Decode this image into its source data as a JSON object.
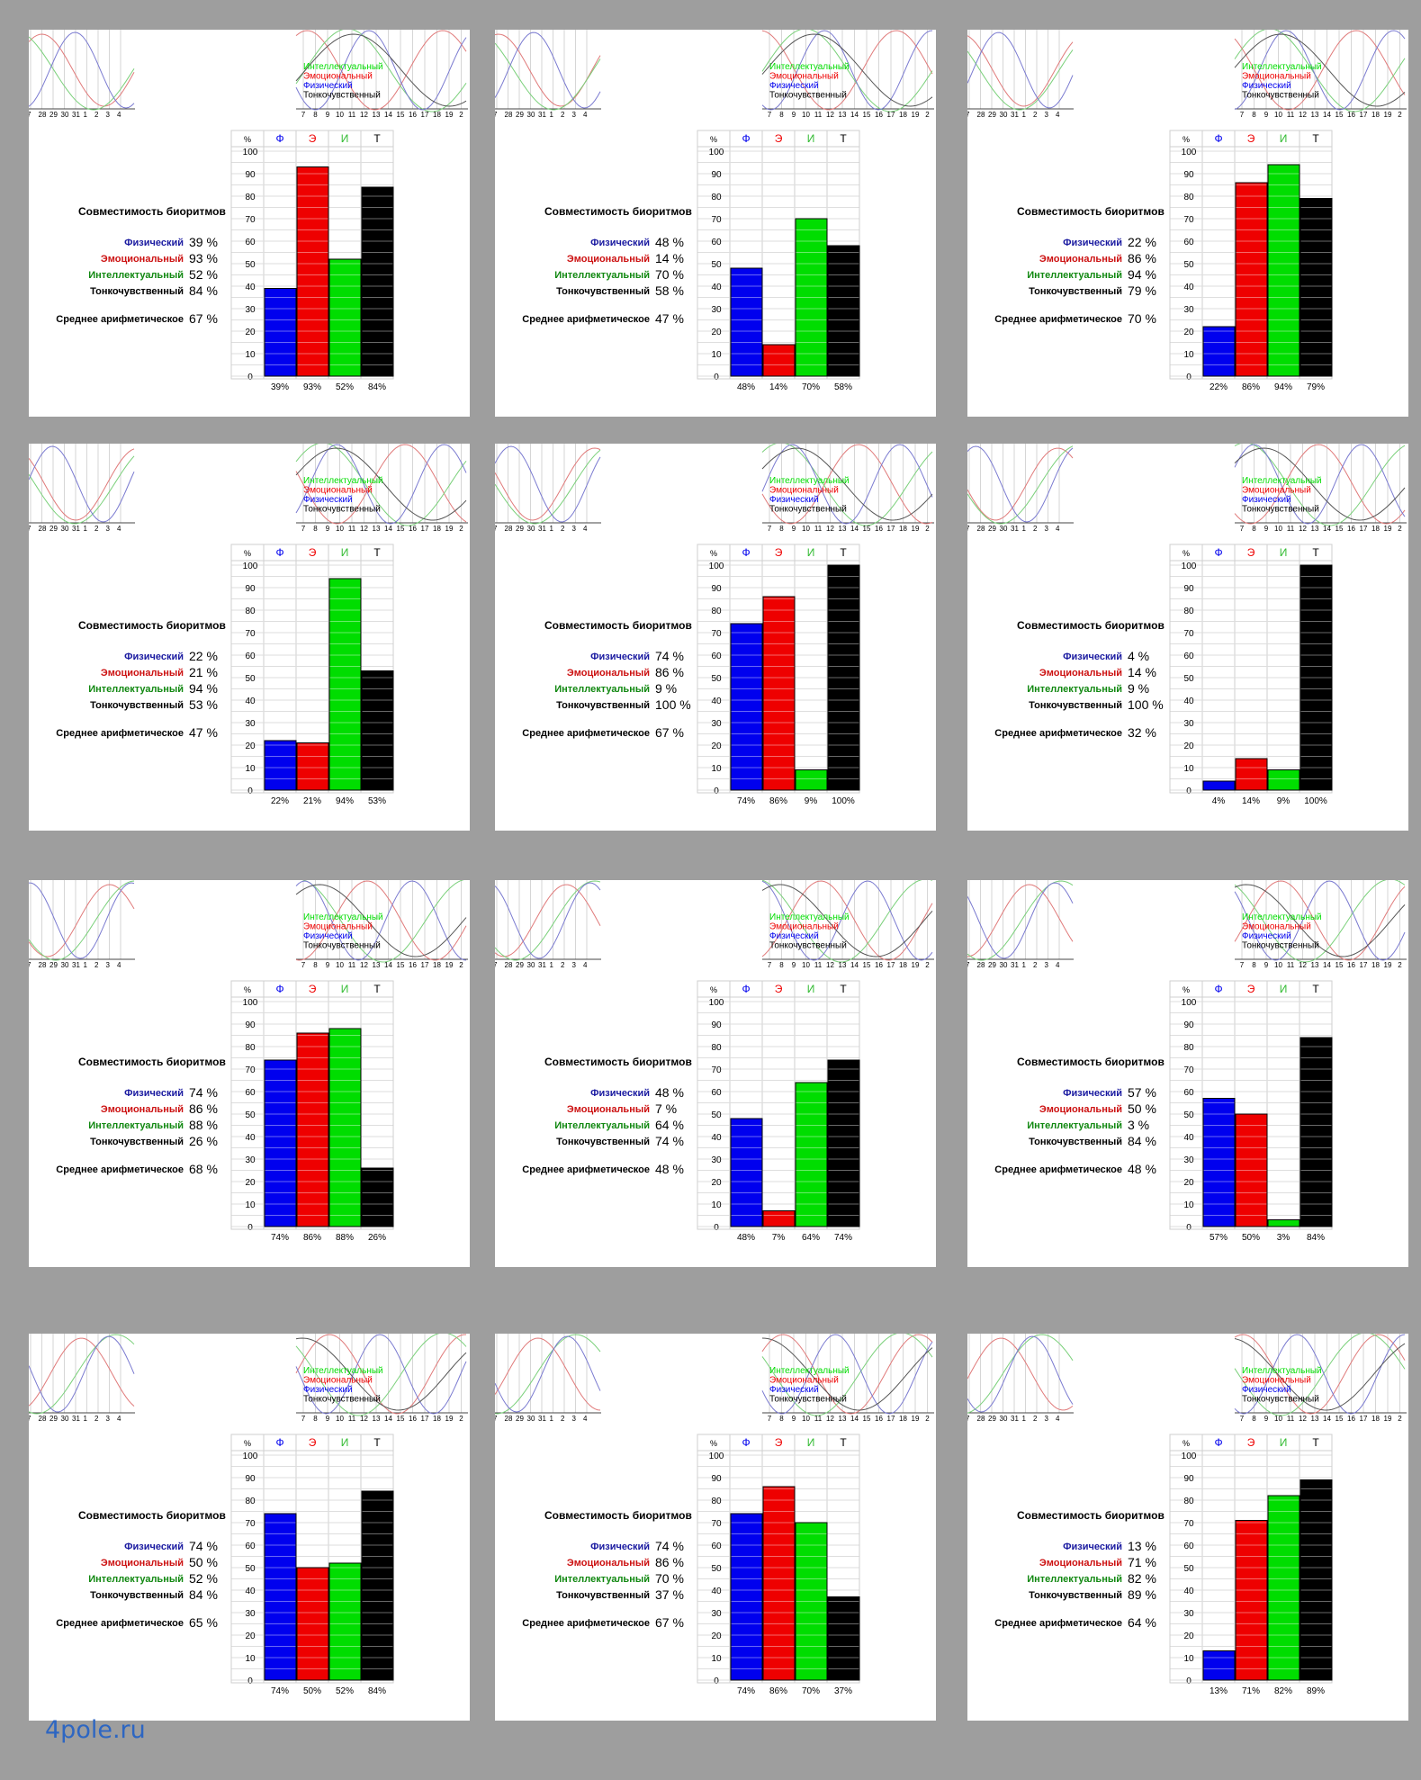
{
  "watermark": "4pole.ru",
  "colors": {
    "physical": "#0000ee",
    "emotional": "#ee0000",
    "intellectual": "#00dd00",
    "subtle": "#000000",
    "label_physical": "#1a1aa0",
    "label_emotional": "#cc1111",
    "label_intellectual": "#118811",
    "label_subtle": "#000000"
  },
  "legend": [
    "Интеллектуальный",
    "Эмоциональный",
    "Физический",
    "Тонкочувственный"
  ],
  "mini_axis": [
    "7",
    "28",
    "29",
    "30",
    "31",
    "1",
    "2",
    "3",
    "4"
  ],
  "main_axis": [
    "7",
    "8",
    "9",
    "10",
    "11",
    "12",
    "13",
    "14",
    "15",
    "16",
    "17",
    "18",
    "19",
    "2"
  ],
  "bar_headers": [
    "%",
    "Ф",
    "Э",
    "И",
    "Т"
  ],
  "y_ticks": [
    "100",
    "90",
    "80",
    "70",
    "60",
    "50",
    "40",
    "30",
    "20",
    "10",
    "0"
  ],
  "title": "Совместимость биоритмов",
  "stat_labels": [
    "Физический",
    "Эмоциональный",
    "Интеллектуальный",
    "Тонкочувственный"
  ],
  "mean_label": "Среднее арифметическое",
  "chart_data": [
    {
      "type": "bar",
      "categories": [
        "Ф",
        "Э",
        "И",
        "Т"
      ],
      "values": [
        39,
        93,
        52,
        84
      ],
      "mean": 67,
      "pct": [
        "39%",
        "93%",
        "52%",
        "84%"
      ],
      "ylim": [
        0,
        100
      ]
    },
    {
      "type": "bar",
      "categories": [
        "Ф",
        "Э",
        "И",
        "Т"
      ],
      "values": [
        48,
        14,
        70,
        58
      ],
      "mean": 47,
      "pct": [
        "48%",
        "14%",
        "70%",
        "58%"
      ],
      "ylim": [
        0,
        100
      ]
    },
    {
      "type": "bar",
      "categories": [
        "Ф",
        "Э",
        "И",
        "Т"
      ],
      "values": [
        22,
        86,
        94,
        79
      ],
      "mean": 70,
      "pct": [
        "22%",
        "86%",
        "94%",
        "79%"
      ],
      "ylim": [
        0,
        100
      ]
    },
    {
      "type": "bar",
      "categories": [
        "Ф",
        "Э",
        "И",
        "Т"
      ],
      "values": [
        22,
        21,
        94,
        53
      ],
      "mean": 47,
      "pct": [
        "22%",
        "21%",
        "94%",
        "53%"
      ],
      "ylim": [
        0,
        100
      ]
    },
    {
      "type": "bar",
      "categories": [
        "Ф",
        "Э",
        "И",
        "Т"
      ],
      "values": [
        74,
        86,
        9,
        100
      ],
      "mean": 67,
      "pct": [
        "74%",
        "86%",
        "9%",
        "100%"
      ],
      "ylim": [
        0,
        100
      ]
    },
    {
      "type": "bar",
      "categories": [
        "Ф",
        "Э",
        "И",
        "Т"
      ],
      "values": [
        4,
        14,
        9,
        100
      ],
      "mean": 32,
      "pct": [
        "4%",
        "14%",
        "9%",
        "100%"
      ],
      "ylim": [
        0,
        100
      ]
    },
    {
      "type": "bar",
      "categories": [
        "Ф",
        "Э",
        "И",
        "Т"
      ],
      "values": [
        74,
        86,
        88,
        26
      ],
      "mean": 68,
      "pct": [
        "74%",
        "86%",
        "88%",
        "26%"
      ],
      "ylim": [
        0,
        100
      ]
    },
    {
      "type": "bar",
      "categories": [
        "Ф",
        "Э",
        "И",
        "Т"
      ],
      "values": [
        48,
        7,
        64,
        74
      ],
      "mean": 48,
      "pct": [
        "48%",
        "7%",
        "64%",
        "74%"
      ],
      "ylim": [
        0,
        100
      ]
    },
    {
      "type": "bar",
      "categories": [
        "Ф",
        "Э",
        "И",
        "Т"
      ],
      "values": [
        57,
        50,
        3,
        84
      ],
      "mean": 48,
      "pct": [
        "57%",
        "50%",
        "3%",
        "84%"
      ],
      "ylim": [
        0,
        100
      ]
    },
    {
      "type": "bar",
      "categories": [
        "Ф",
        "Э",
        "И",
        "Т"
      ],
      "values": [
        74,
        50,
        52,
        84
      ],
      "mean": 65,
      "pct": [
        "74%",
        "50%",
        "52%",
        "84%"
      ],
      "ylim": [
        0,
        100
      ]
    },
    {
      "type": "bar",
      "categories": [
        "Ф",
        "Э",
        "И",
        "Т"
      ],
      "values": [
        74,
        86,
        70,
        37
      ],
      "mean": 67,
      "pct": [
        "74%",
        "86%",
        "70%",
        "37%"
      ],
      "ylim": [
        0,
        100
      ]
    },
    {
      "type": "bar",
      "categories": [
        "Ф",
        "Э",
        "И",
        "Т"
      ],
      "values": [
        13,
        71,
        82,
        89
      ],
      "mean": 64,
      "pct": [
        "13%",
        "71%",
        "82%",
        "89%"
      ],
      "ylim": [
        0,
        100
      ]
    }
  ]
}
